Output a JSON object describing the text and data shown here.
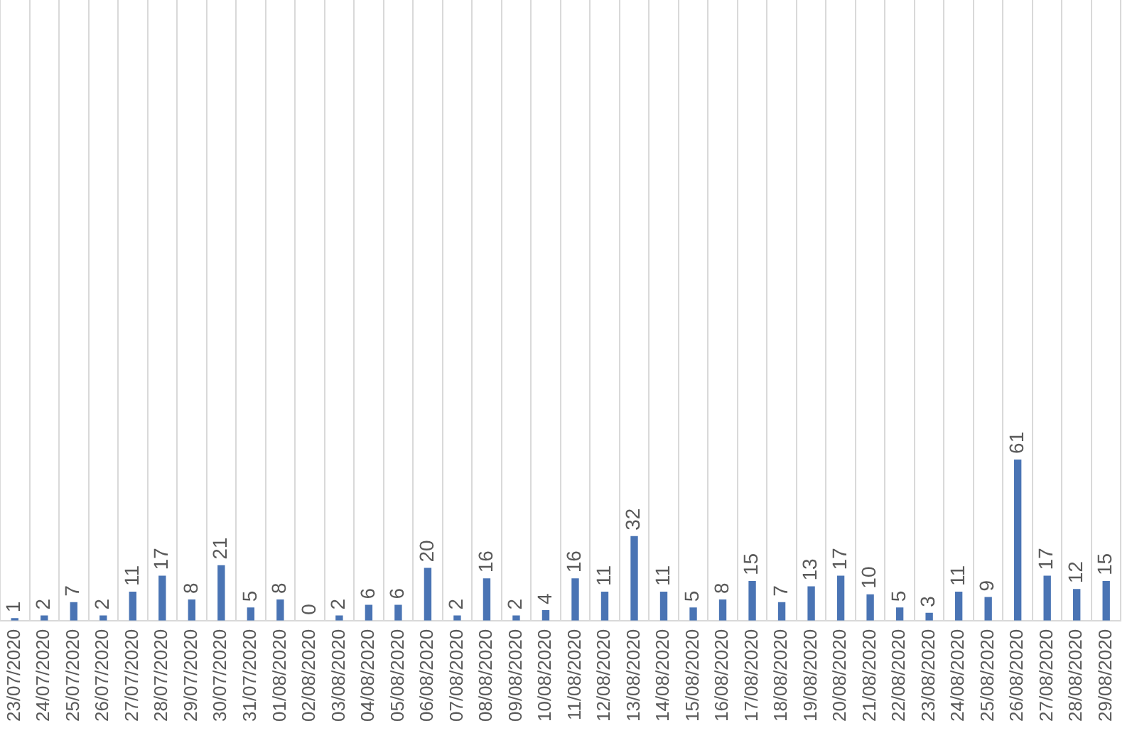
{
  "chart_data": {
    "type": "bar",
    "categories": [
      "23/07/2020",
      "24/07/2020",
      "25/07/2020",
      "26/07/2020",
      "27/07/2020",
      "28/07/2020",
      "29/07/2020",
      "30/07/2020",
      "31/07/2020",
      "01/08/2020",
      "02/08/2020",
      "03/08/2020",
      "04/08/2020",
      "05/08/2020",
      "06/08/2020",
      "07/08/2020",
      "08/08/2020",
      "09/08/2020",
      "10/08/2020",
      "11/08/2020",
      "12/08/2020",
      "13/08/2020",
      "14/08/2020",
      "15/08/2020",
      "16/08/2020",
      "17/08/2020",
      "18/08/2020",
      "19/08/2020",
      "20/08/2020",
      "21/08/2020",
      "22/08/2020",
      "23/08/2020",
      "24/08/2020",
      "25/08/2020",
      "26/08/2020",
      "27/08/2020",
      "28/08/2020",
      "29/08/2020"
    ],
    "values": [
      1,
      2,
      7,
      2,
      11,
      17,
      8,
      21,
      5,
      8,
      0,
      2,
      6,
      6,
      20,
      2,
      16,
      2,
      4,
      16,
      11,
      32,
      11,
      5,
      8,
      15,
      7,
      13,
      17,
      10,
      5,
      3,
      11,
      9,
      61,
      17,
      12,
      15
    ],
    "color": "#4a74b4",
    "data_labels": true,
    "grid": "x"
  }
}
